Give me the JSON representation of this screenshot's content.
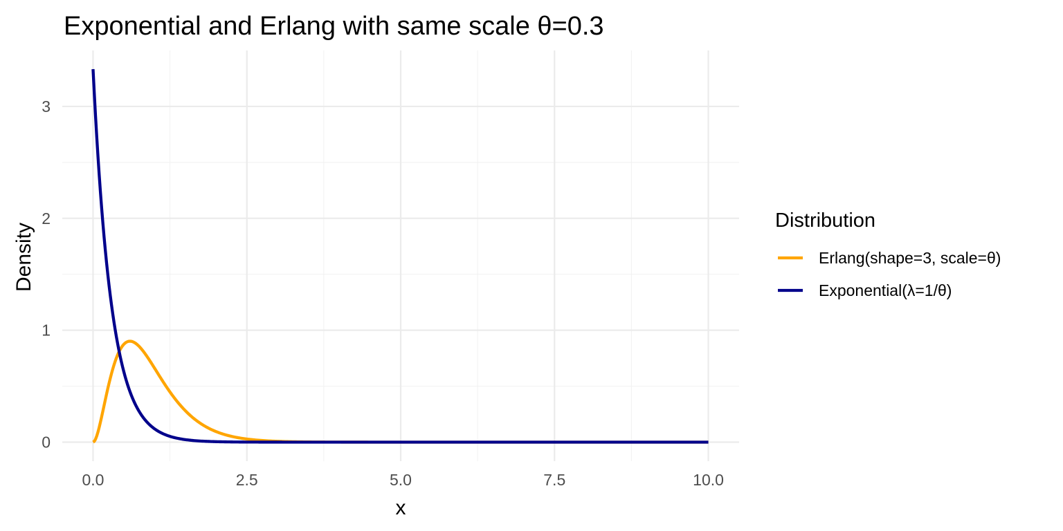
{
  "chart_data": {
    "type": "line",
    "title": "Exponential and Erlang with same scale θ=0.3",
    "xlabel": "x",
    "ylabel": "Density",
    "xlim": [
      -0.5,
      10.5
    ],
    "ylim": [
      -0.17,
      3.5
    ],
    "x_ticks": [
      0,
      2.5,
      5,
      7.5,
      10
    ],
    "x_tick_labels": [
      "0.0",
      "2.5",
      "5.0",
      "7.5",
      "10.0"
    ],
    "y_ticks": [
      0,
      1,
      2,
      3
    ],
    "y_tick_labels": [
      "0",
      "1",
      "2",
      "3"
    ],
    "grid": true,
    "legend": {
      "title": "Distribution",
      "position": "right"
    },
    "x_domain": [
      0,
      10
    ],
    "series": [
      {
        "name": "Erlang(shape=3, scale=θ)",
        "color": "#FFA500",
        "formula": "erlang",
        "shape": 3,
        "scale": 0.3
      },
      {
        "name": "Exponential(λ=1/θ)",
        "color": "#00008B",
        "formula": "exponential",
        "scale": 0.3
      }
    ]
  }
}
